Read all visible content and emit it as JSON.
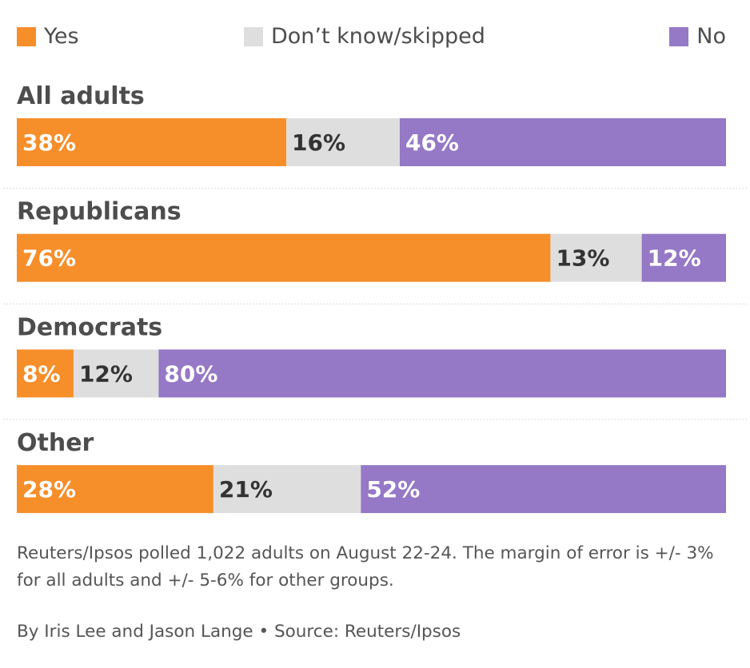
{
  "colors": {
    "yes": "#f68e2a",
    "dont_know": "#dedede",
    "no": "#9578c6",
    "divider": "#dcdcdc",
    "text": "#4d4d4d",
    "label_on_light": "#333333",
    "label_on_dark": "#ffffff"
  },
  "legend": {
    "yes": "Yes",
    "dont_know": "Don’t know/skipped",
    "no": "No"
  },
  "chart_data": {
    "type": "bar",
    "orientation": "horizontal",
    "stacked": true,
    "categories": [
      "All adults",
      "Republicans",
      "Democrats",
      "Other"
    ],
    "series": [
      {
        "name": "Yes",
        "values": [
          38,
          76,
          8,
          28
        ],
        "labels": [
          "38%",
          "76%",
          "8%",
          "28%"
        ]
      },
      {
        "name": "Don’t know/skipped",
        "values": [
          16,
          13,
          12,
          21
        ],
        "labels": [
          "16%",
          "13%",
          "12%",
          "21%"
        ]
      },
      {
        "name": "No",
        "values": [
          46,
          12,
          80,
          52
        ],
        "labels": [
          "46%",
          "12%",
          "80%",
          "52%"
        ]
      }
    ],
    "legend_position": "top",
    "grid": false
  },
  "footer": {
    "note": "Reuters/Ipsos polled 1,022 adults on August 22-24. The margin of error is +/- 3% for all adults and +/- 5-6% for other groups.",
    "byline": "By Iris Lee and Jason Lange • Source: Reuters/Ipsos"
  }
}
